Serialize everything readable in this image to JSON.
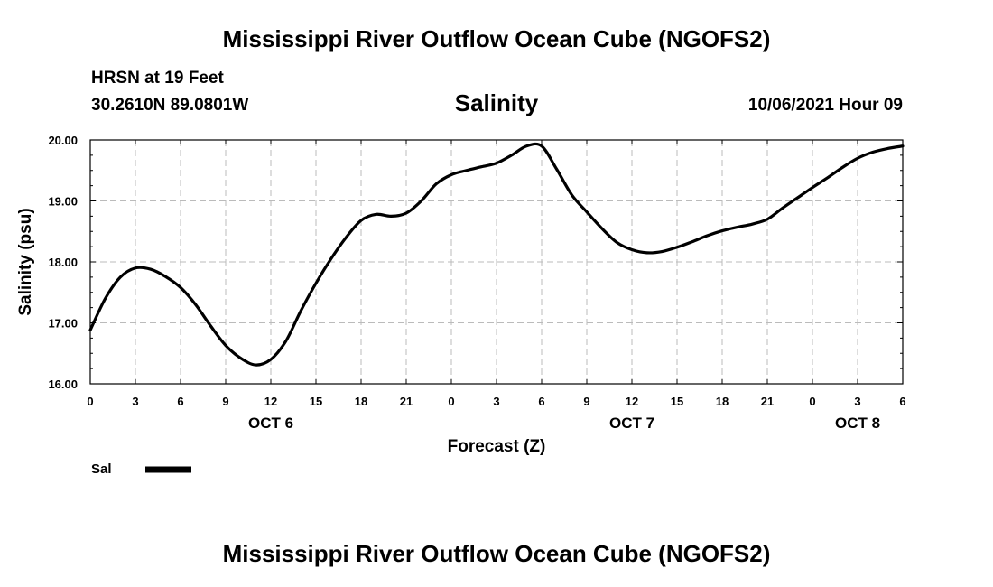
{
  "header": {
    "title": "Mississippi River Outflow Ocean Cube (NGOFS2)",
    "station": "HRSN at 19 Feet",
    "coords": "30.2610N  89.0801W",
    "plot_title": "Salinity",
    "run_time": "10/06/2021 Hour 09"
  },
  "footer": {
    "title": "Mississippi River Outflow Ocean Cube (NGOFS2)"
  },
  "colors": {
    "line": "#000000",
    "grid": "#bbbbbb",
    "background": "#ffffff"
  },
  "chart_data": {
    "type": "line",
    "title": "Salinity",
    "xlabel": "Forecast (Z)",
    "ylabel": "Salinity (psu)",
    "xlim": [
      0,
      54
    ],
    "ylim": [
      16,
      20
    ],
    "x_ticks": [
      0,
      3,
      6,
      9,
      12,
      15,
      18,
      21,
      24,
      27,
      30,
      33,
      36,
      39,
      42,
      45,
      48,
      51,
      54
    ],
    "x_tick_labels": [
      "0",
      "3",
      "6",
      "9",
      "12",
      "15",
      "18",
      "21",
      "0",
      "3",
      "6",
      "9",
      "12",
      "15",
      "18",
      "21",
      "0",
      "3",
      "6"
    ],
    "y_ticks": [
      16,
      17,
      18,
      19,
      20
    ],
    "y_tick_labels": [
      "16.00",
      "17.00",
      "18.00",
      "19.00",
      "20.00"
    ],
    "day_labels": [
      {
        "x": 12,
        "label": "OCT 6"
      },
      {
        "x": 36,
        "label": "OCT 7"
      },
      {
        "x": 51,
        "label": "OCT 8"
      }
    ],
    "grid": true,
    "legend": {
      "position": "bottom-left",
      "entries": [
        {
          "label": "Sal"
        }
      ]
    },
    "series": [
      {
        "name": "Sal",
        "x": [
          0,
          1,
          2,
          3,
          4,
          5,
          6,
          7,
          8,
          9,
          10,
          11,
          12,
          13,
          14,
          15,
          16,
          17,
          18,
          19,
          20,
          21,
          22,
          23,
          24,
          25,
          26,
          27,
          28,
          29,
          30,
          31,
          32,
          33,
          34,
          35,
          36,
          37,
          38,
          39,
          40,
          41,
          42,
          43,
          44,
          45,
          46,
          47,
          48,
          49,
          50,
          51,
          52,
          53,
          54
        ],
        "values": [
          16.88,
          17.4,
          17.75,
          17.9,
          17.88,
          17.76,
          17.58,
          17.3,
          16.95,
          16.63,
          16.42,
          16.31,
          16.4,
          16.7,
          17.2,
          17.65,
          18.05,
          18.4,
          18.68,
          18.78,
          18.75,
          18.8,
          19.0,
          19.28,
          19.43,
          19.5,
          19.56,
          19.62,
          19.75,
          19.9,
          19.9,
          19.52,
          19.1,
          18.82,
          18.55,
          18.32,
          18.2,
          18.15,
          18.17,
          18.24,
          18.33,
          18.43,
          18.51,
          18.57,
          18.62,
          18.7,
          18.88,
          19.05,
          19.22,
          19.38,
          19.55,
          19.7,
          19.8,
          19.86,
          19.9
        ]
      }
    ]
  }
}
